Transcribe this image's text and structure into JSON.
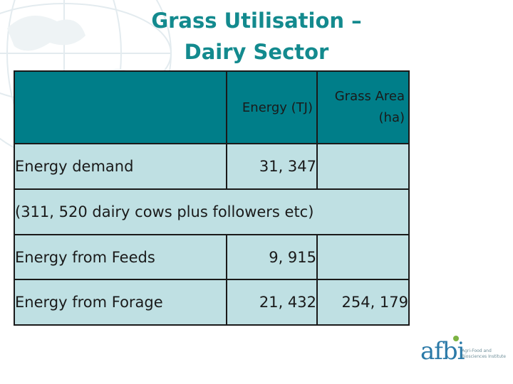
{
  "title": {
    "line1": "Grass Utilisation –",
    "line2": "Dairy Sector"
  },
  "table": {
    "headers": {
      "blank": "",
      "energy": "Energy (TJ)",
      "grass_area": "Grass Area (ha)"
    },
    "rows": [
      {
        "label": "Energy demand",
        "energy": "31, 347",
        "grass_area": ""
      },
      {
        "note": "(311, 520 dairy cows plus followers etc)"
      },
      {
        "label": "Energy from Feeds",
        "energy": "9, 915",
        "grass_area": ""
      },
      {
        "label": "Energy from Forage",
        "energy": "21, 432",
        "grass_area": "254, 179"
      }
    ]
  },
  "logo": {
    "word": "afbi",
    "subtitle": "Agri-Food and Biosciences Institute"
  },
  "colors": {
    "title": "#138a8e",
    "header_bg": "#007e89",
    "row_bg": "#bfe0e3"
  }
}
